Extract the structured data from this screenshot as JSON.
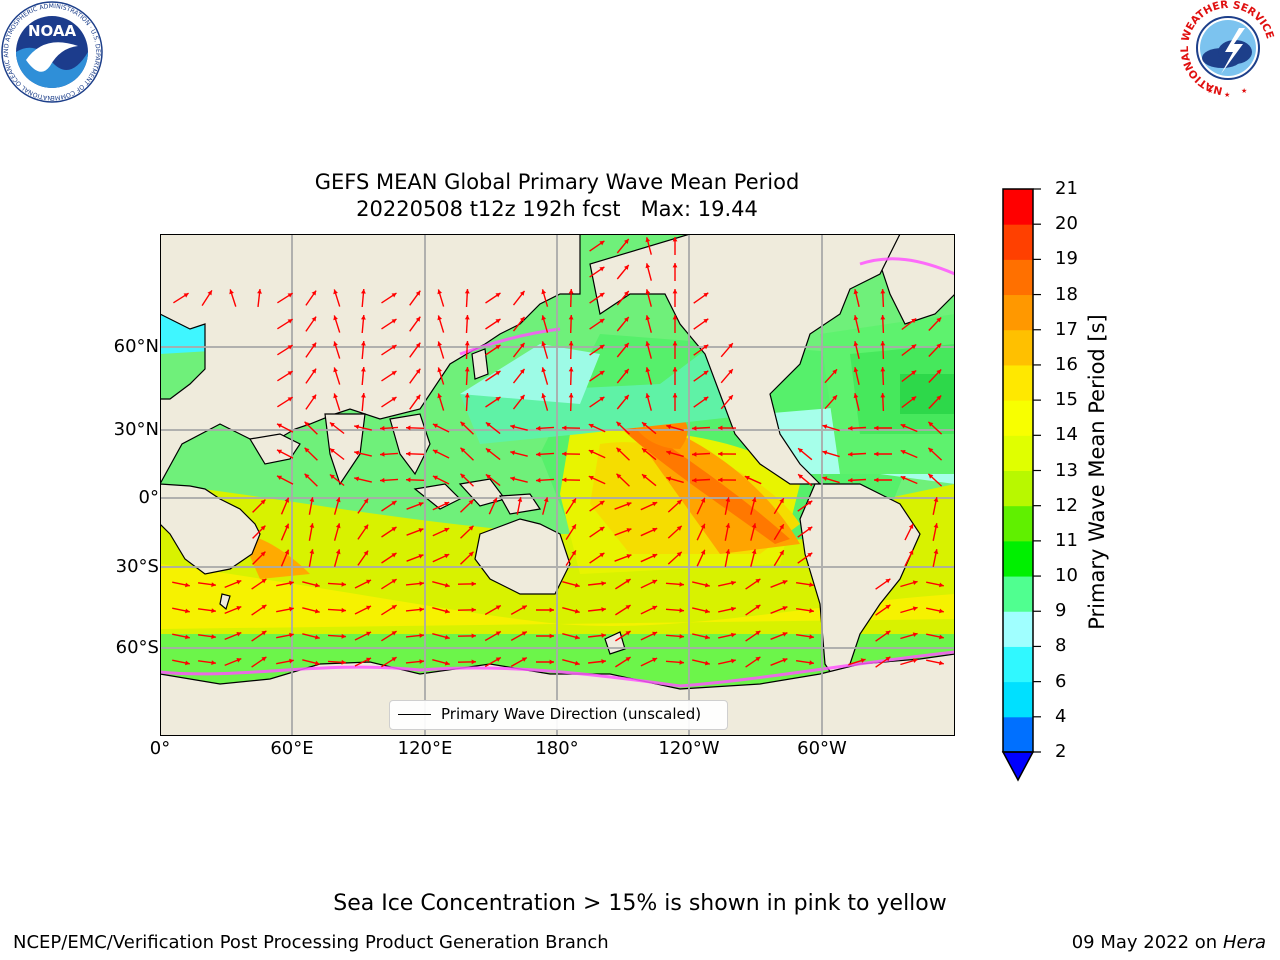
{
  "title": {
    "line1": "GEFS MEAN Global Primary Wave Mean Period",
    "line2": "20220508 t12z 192h fcst   Max: 19.44"
  },
  "map": {
    "lat_ticks": [
      "60°N",
      "30°N",
      "0°",
      "30°S",
      "60°S"
    ],
    "lon_ticks": [
      "0°",
      "60°E",
      "120°E",
      "180°",
      "120°W",
      "60°W"
    ],
    "legend_label": "Primary Wave Direction (unscaled)",
    "land_color": "#efebdc",
    "arrow_color": "#ff0000",
    "sea_ice_color": "#ff55ff"
  },
  "colorbar": {
    "label": "Primary Wave Mean Period [s]",
    "ticks": [
      "2",
      "4",
      "6",
      "8",
      "9",
      "10",
      "11",
      "12",
      "13",
      "14",
      "15",
      "16",
      "17",
      "18",
      "19",
      "20",
      "21"
    ],
    "colors": [
      "#0070ff",
      "#00e0ff",
      "#30f8ff",
      "#a0ffff",
      "#50ff90",
      "#00f000",
      "#60f000",
      "#b8f800",
      "#e0ff00",
      "#f8ff00",
      "#ffe800",
      "#ffc000",
      "#ff9800",
      "#ff7000",
      "#ff4000",
      "#ff0000"
    ],
    "extend_color": "#0000ff"
  },
  "footer": {
    "note": "Sea Ice Concentration > 15% is shown in pink to yellow",
    "credit": "NCEP/EMC/Verification Post Processing Product Generation Branch",
    "date": "09 May 2022 on",
    "host": "Hera"
  },
  "logos": {
    "noaa": "NOAA",
    "noaa_ring": "NATIONAL OCEANIC AND ATMOSPHERIC ADMINISTRATION · U.S. DEPARTMENT OF COMMERCE",
    "nws_ring": "NATIONAL WEATHER SERVICE"
  }
}
